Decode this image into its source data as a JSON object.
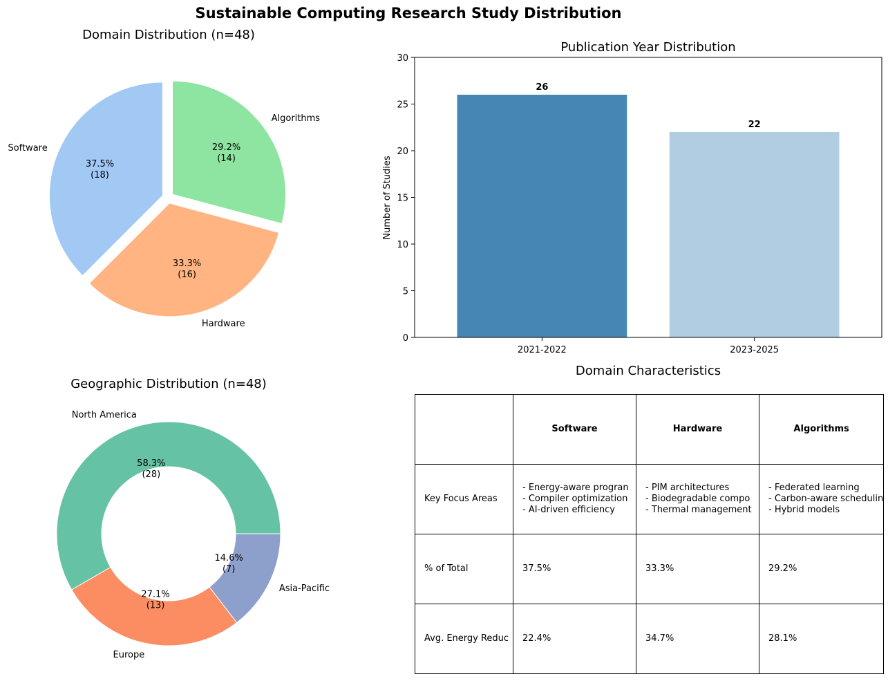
{
  "figure_title": "Sustainable Computing Research Study Distribution",
  "chart_data": [
    {
      "type": "pie",
      "title": "Domain Distribution (n=48)",
      "labels": [
        "Software",
        "Hardware",
        "Algorithms"
      ],
      "values": [
        18,
        16,
        14
      ],
      "percent_labels": [
        "37.5%\n(18)",
        "33.3%\n(16)",
        "29.2%\n(14)"
      ],
      "colors": [
        "#a1c9f4",
        "#ffb482",
        "#8de5a1"
      ],
      "exploded": true
    },
    {
      "type": "bar",
      "title": "Publication Year Distribution",
      "categories": [
        "2021-2022",
        "2023-2025"
      ],
      "values": [
        26,
        22
      ],
      "data_labels": [
        "26",
        "22"
      ],
      "ylabel": "Number of Studies",
      "xlabel": "",
      "ylim": [
        0,
        30
      ],
      "yticks": [
        0,
        5,
        10,
        15,
        20,
        25,
        30
      ],
      "colors": [
        "#4686b4",
        "#b0cde1"
      ]
    },
    {
      "type": "pie",
      "subtype": "donut",
      "title": "Geographic Distribution (n=48)",
      "labels": [
        "North America",
        "Europe",
        "Asia-Pacific"
      ],
      "values": [
        28,
        13,
        7
      ],
      "percent_labels": [
        "58.3%\n(28)",
        "27.1%\n(13)",
        "14.6%\n(7)"
      ],
      "colors": [
        "#66c2a5",
        "#fc8d62",
        "#8da0cb"
      ]
    },
    {
      "type": "table",
      "title": "Domain Characteristics",
      "columns": [
        "",
        "Software",
        "Hardware",
        "Algorithms"
      ],
      "rows": [
        [
          "Key Focus Areas",
          "- Energy-aware progran\n- Compiler optimization\n- AI-driven efficiency",
          "- PIM architectures\n- Biodegradable compo\n- Thermal management",
          "- Federated learning\n- Carbon-aware schedulin\n- Hybrid models"
        ],
        [
          "% of Total",
          "37.5%",
          "33.3%",
          "29.2%"
        ],
        [
          "Avg. Energy Reduc",
          "22.4%",
          "34.7%",
          "28.1%"
        ]
      ]
    }
  ]
}
